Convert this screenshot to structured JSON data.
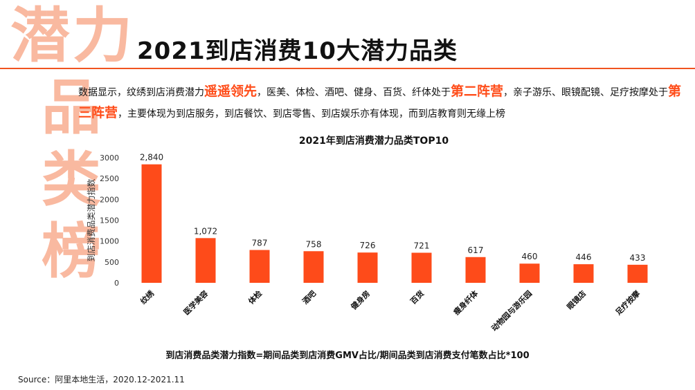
{
  "side_title": {
    "chars": [
      "潜",
      "力",
      "品",
      "类",
      "榜"
    ]
  },
  "main_title": "2021到店消费10大潜力品类",
  "description": {
    "p1": "数据显示，纹绣到店消费潜力",
    "h1": "遥遥领先",
    "p2": "，医美、体检、酒吧、健身、百货、纤体处于",
    "h2": "第二阵营",
    "p3": "，亲子游乐、眼镜配镜、足疗按摩处于",
    "h3": "第三阵营",
    "p4": "，主要体现为到店服务，到店餐饮、到店零售、到店娱乐亦有体现，而到店教育则无缘上榜"
  },
  "formula": "到店消费品类潜力指数=期间品类到店消费GMV占比/期间品类到店消费支付笔数占比*100",
  "source": "Source：阿里本地生活，2020.12-2021.11",
  "colors": {
    "bar": "#fe4b1a",
    "accent": "#ff4d1a",
    "side_title": "#f9b9a0",
    "rule": "#f0531f"
  },
  "chart_data": {
    "type": "bar",
    "title": "2021年到店消费潜力品类TOP10",
    "ylabel": "到店消费品类潜力指数",
    "xlabel": "",
    "ylim": [
      0,
      3000
    ],
    "yticks": [
      0,
      500,
      1000,
      1500,
      2000,
      2500,
      3000
    ],
    "grid": false,
    "categories": [
      "纹绣",
      "医学美容",
      "体检",
      "酒吧",
      "健身房",
      "百货",
      "瘦身纤体",
      "动物园与游乐园",
      "眼镜店",
      "足疗按摩"
    ],
    "values": [
      2840,
      1072,
      787,
      758,
      726,
      721,
      617,
      460,
      446,
      433
    ],
    "value_labels": [
      "2,840",
      "1,072",
      "787",
      "758",
      "726",
      "721",
      "617",
      "460",
      "446",
      "433"
    ]
  }
}
